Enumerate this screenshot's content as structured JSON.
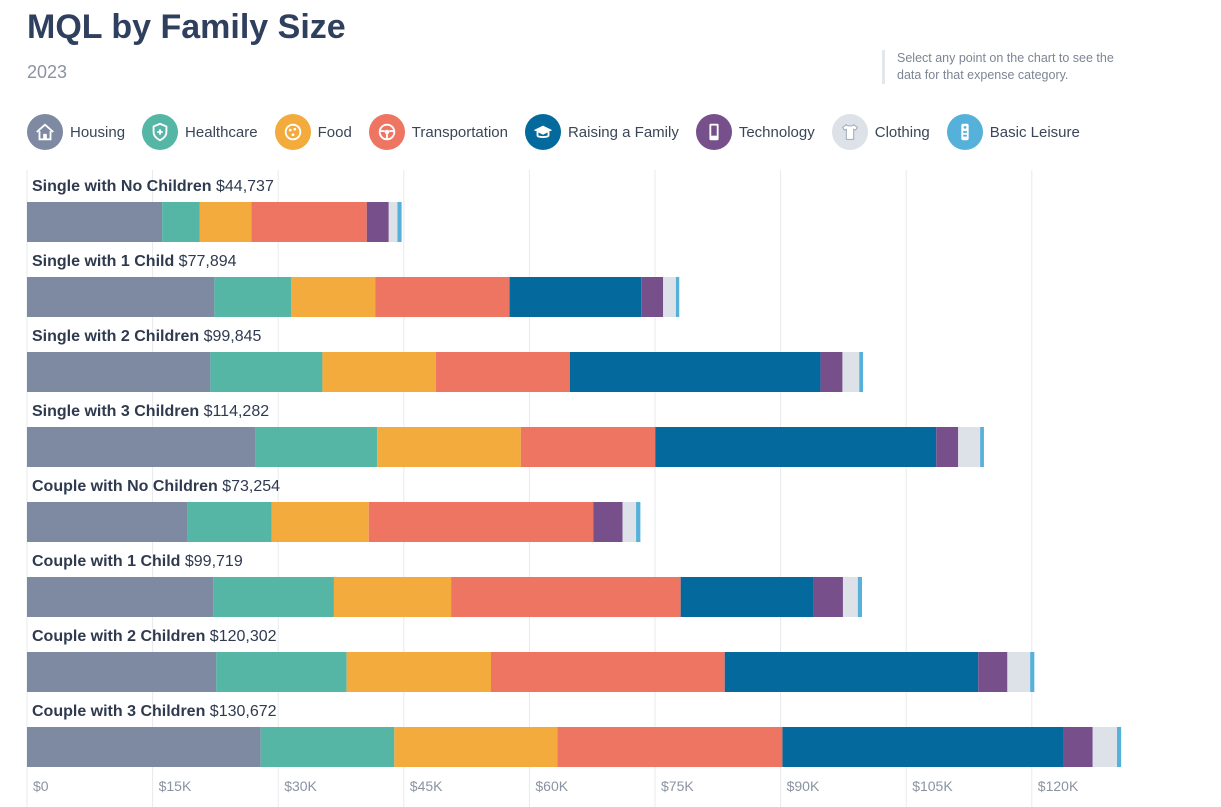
{
  "header": {
    "title": "MQL by Family Size",
    "subtitle": "2023",
    "hint": "Select any point on the chart to see the data for that expense category."
  },
  "legend": [
    {
      "label": "Housing",
      "icon": "house-icon",
      "color": "#7e8aa2"
    },
    {
      "label": "Healthcare",
      "icon": "medical-shield-icon",
      "color": "#55b6a6"
    },
    {
      "label": "Food",
      "icon": "pizza-icon",
      "color": "#f2ab3c"
    },
    {
      "label": "Transportation",
      "icon": "steering-wheel-icon",
      "color": "#ee7562"
    },
    {
      "label": "Raising a Family",
      "icon": "graduation-cap-icon",
      "color": "#046a9e"
    },
    {
      "label": "Technology",
      "icon": "phone-icon",
      "color": "#764f8b"
    },
    {
      "label": "Clothing",
      "icon": "shirt-icon",
      "color": "#dde1e8"
    },
    {
      "label": "Basic Leisure",
      "icon": "remote-icon",
      "color": "#55b1da"
    }
  ],
  "chart_data": {
    "type": "bar",
    "orientation": "horizontal",
    "stacked": true,
    "title": "MQL by Family Size",
    "subtitle": "2023",
    "xlim": [
      0,
      130672
    ],
    "ticks": [
      0,
      15000,
      30000,
      45000,
      60000,
      75000,
      90000,
      105000,
      120000
    ],
    "tick_labels": [
      "$0",
      "$15K",
      "$30K",
      "$45K",
      "$60K",
      "$75K",
      "$90K",
      "$105K",
      "$120K"
    ],
    "grid": true,
    "legend_position": "top",
    "categories": [
      {
        "label": "Single with No Children",
        "total_label": "$44,737"
      },
      {
        "label": "Single with 1 Child",
        "total_label": "$77,894"
      },
      {
        "label": "Single with 2 Children",
        "total_label": "$99,845"
      },
      {
        "label": "Single with 3 Children",
        "total_label": "$114,282"
      },
      {
        "label": "Couple with No Children",
        "total_label": "$73,254"
      },
      {
        "label": "Couple with 1 Child",
        "total_label": "$99,719"
      },
      {
        "label": "Couple with 2 Children",
        "total_label": "$120,302"
      },
      {
        "label": "Couple with 3 Children",
        "total_label": "$130,672"
      }
    ],
    "series": [
      {
        "name": "Housing",
        "color": "#7e8aa2",
        "values": [
          16135,
          22375,
          21900,
          27314,
          19186,
          22254,
          22612,
          27912
        ]
      },
      {
        "name": "Healthcare",
        "color": "#55b6a6",
        "values": [
          4464,
          9196,
          13380,
          14504,
          10048,
          14405,
          15568,
          15954
        ]
      },
      {
        "name": "Food",
        "color": "#f2ab3c",
        "values": [
          6190,
          10011,
          13537,
          17161,
          11580,
          13989,
          17233,
          19469
        ]
      },
      {
        "name": "Transportation",
        "color": "#ee7562",
        "values": [
          13789,
          16051,
          16008,
          16052,
          26838,
          27419,
          27915,
          26885
        ]
      },
      {
        "name": "Raising a Family",
        "color": "#046a9e",
        "values": [
          0,
          15717,
          29934,
          33551,
          0,
          15903,
          30276,
          33574
        ]
      },
      {
        "name": "Technology",
        "color": "#764f8b",
        "values": [
          2625,
          2625,
          2625,
          2625,
          3477,
          3477,
          3477,
          3477
        ]
      },
      {
        "name": "Clothing",
        "color": "#dde1e8",
        "values": [
          1040,
          1525,
          2011,
          2625,
          1610,
          1778,
          2725,
          2907
        ]
      },
      {
        "name": "Basic Leisure",
        "color": "#55b1da",
        "values": [
          494,
          394,
          450,
          450,
          515,
          494,
          496,
          494
        ]
      }
    ]
  }
}
